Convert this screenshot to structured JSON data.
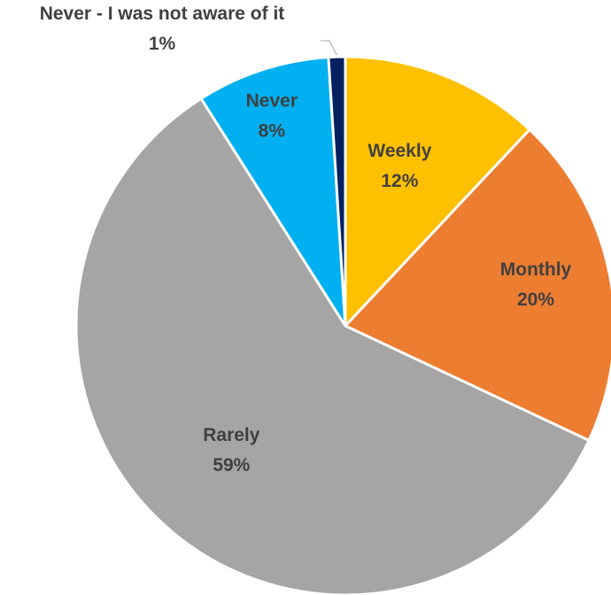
{
  "chart_data": {
    "type": "pie",
    "slices": [
      {
        "label": "Weekly",
        "value": 12,
        "pct_label": "12%",
        "color": "#FFC000"
      },
      {
        "label": "Monthly",
        "value": 20,
        "pct_label": "20%",
        "color": "#ED7D31"
      },
      {
        "label": "Rarely",
        "value": 59,
        "pct_label": "59%",
        "color": "#A5A5A5"
      },
      {
        "label": "Never",
        "value": 8,
        "pct_label": "8%",
        "color": "#00B0F0"
      },
      {
        "label": "Never - I was not aware of it",
        "value": 1,
        "pct_label": "1%",
        "color": "#002060"
      }
    ],
    "start_angle": "12 o'clock",
    "direction": "clockwise",
    "legend": "none",
    "data_labels": "category and percentage"
  }
}
